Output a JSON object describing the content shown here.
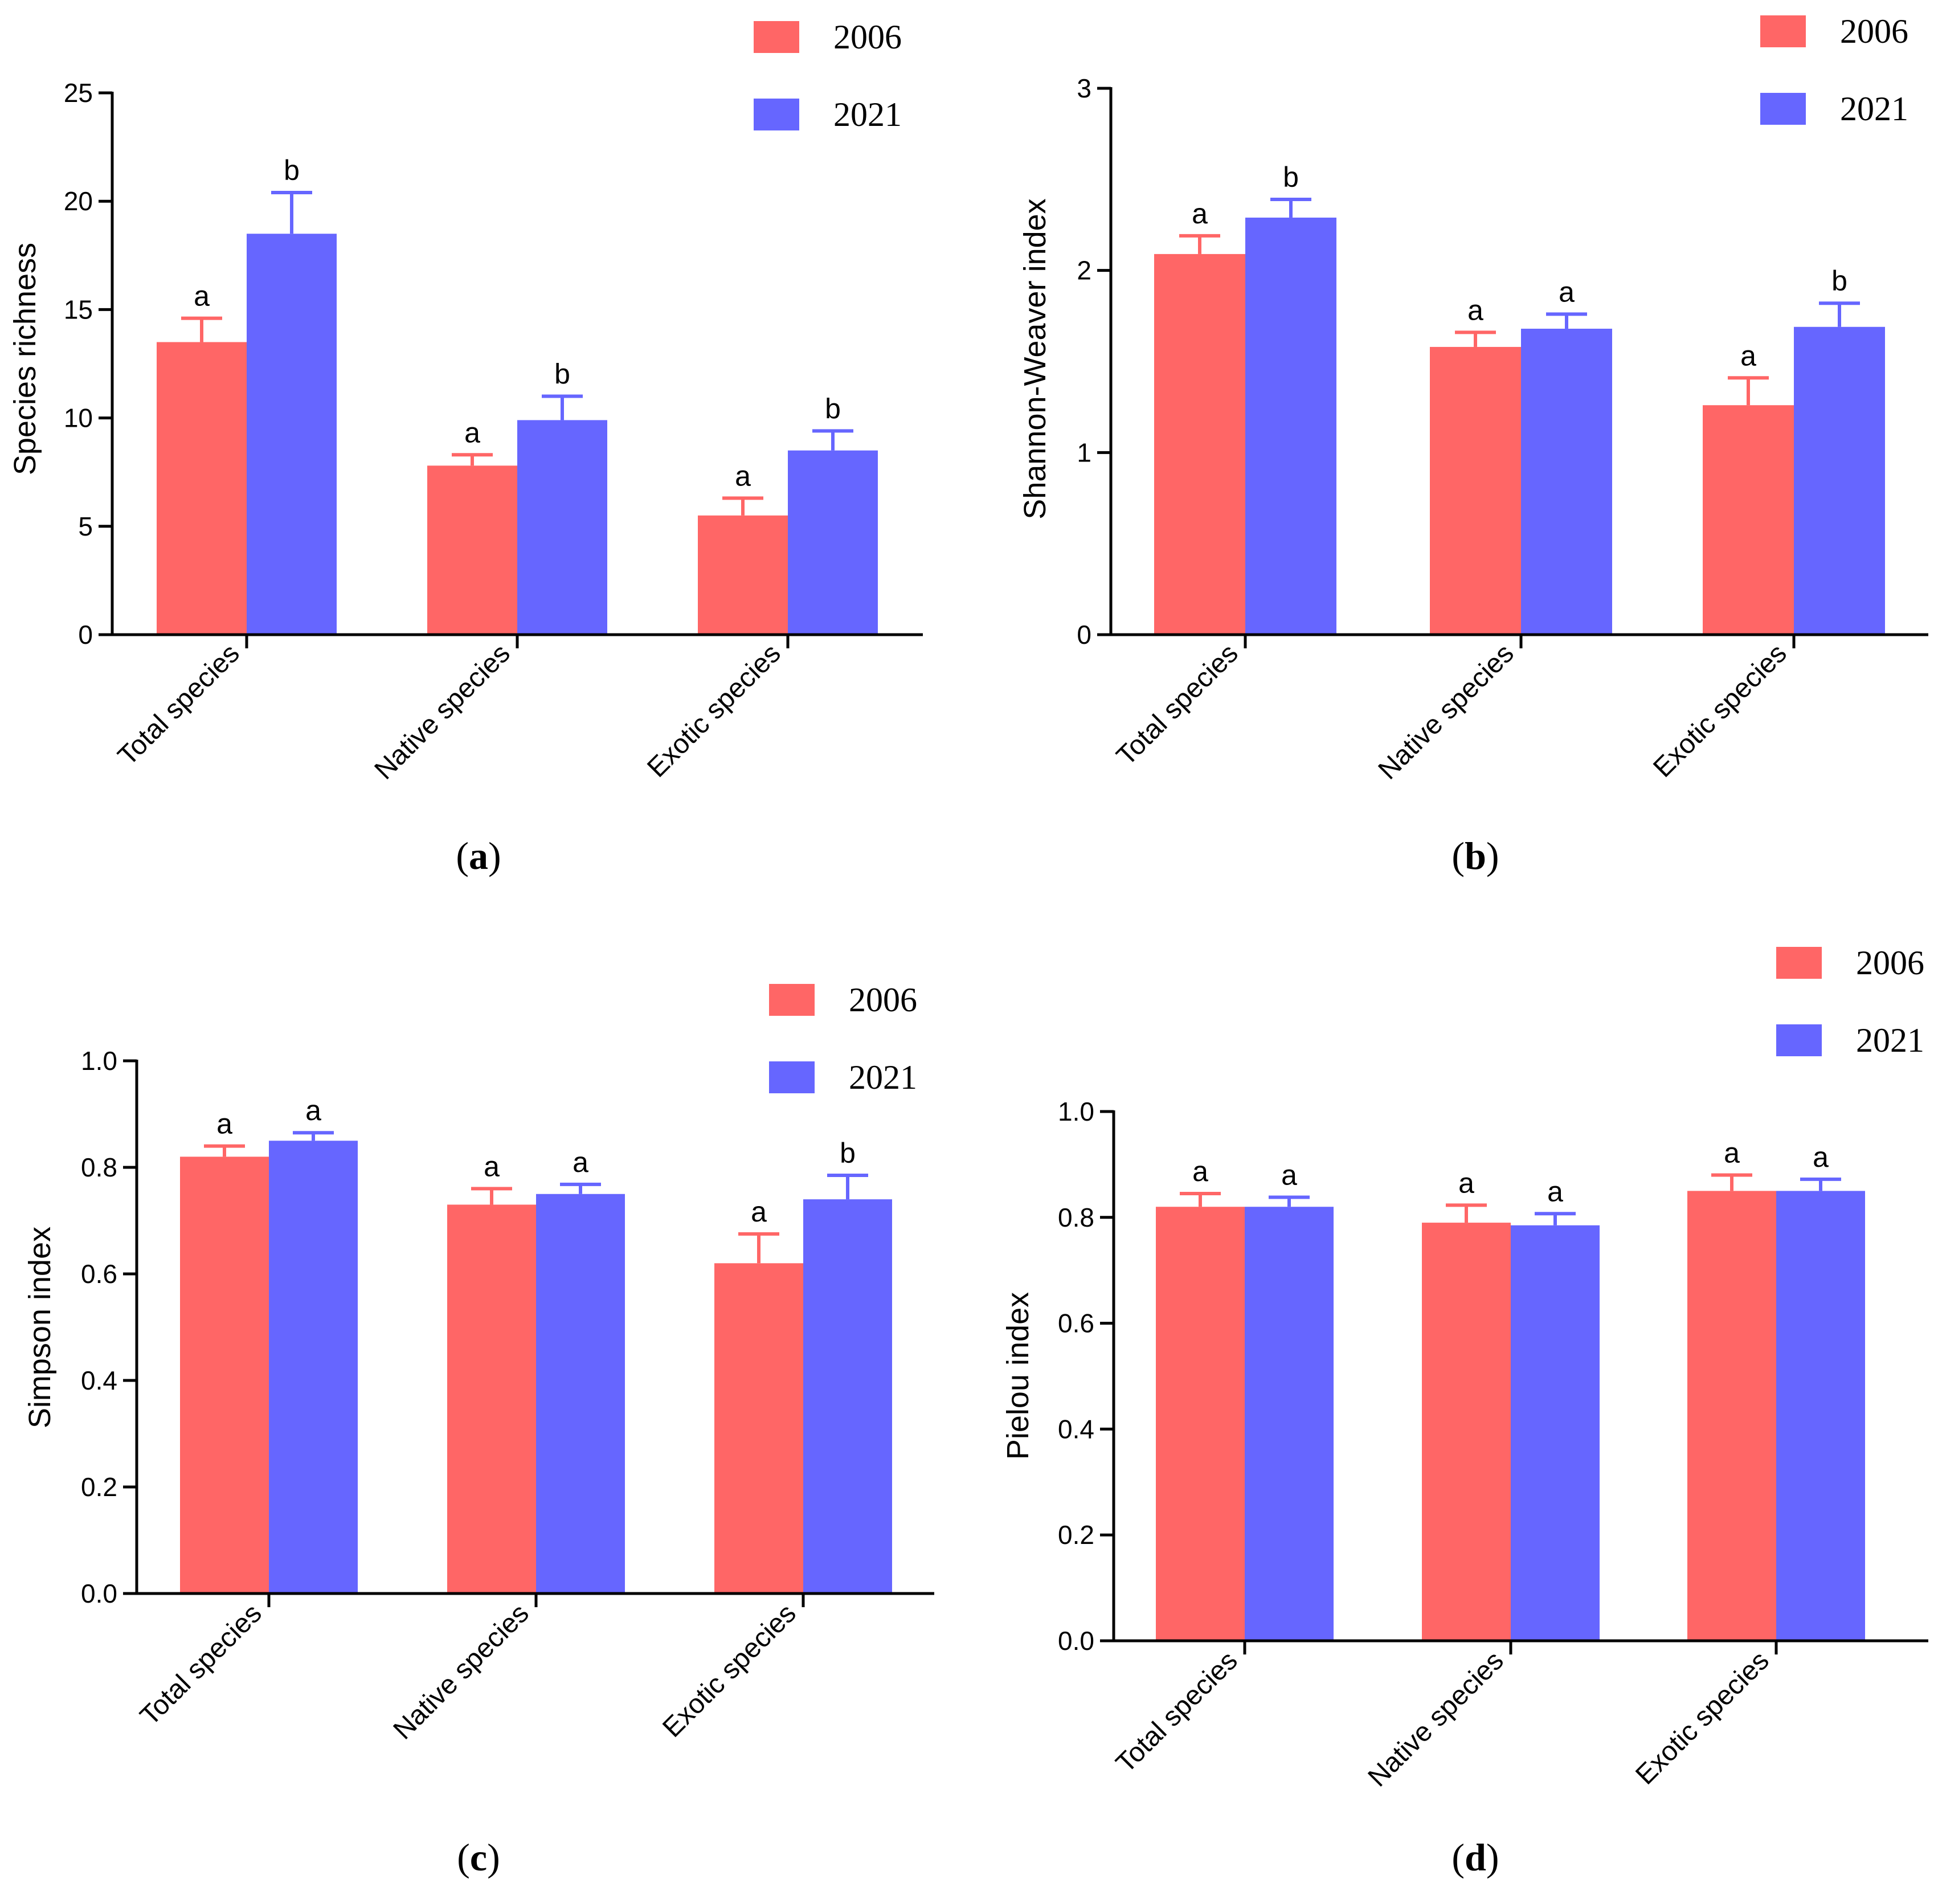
{
  "colors": {
    "series_2006": "#FF6666",
    "series_2021": "#6666FF",
    "axis": "#000000",
    "pielou_ylabel": "#555555"
  },
  "chart_data": [
    {
      "type": "bar",
      "panel": "a",
      "ylabel": "Species richness",
      "ylim": [
        0,
        25
      ],
      "yticks": [
        "0",
        "5",
        "10",
        "15",
        "20",
        "25"
      ],
      "categories": [
        "Total species",
        "Native species",
        "Exotic species"
      ],
      "series": [
        {
          "name": "2006",
          "values": [
            13.5,
            7.8,
            5.5
          ],
          "errors": [
            1.1,
            0.5,
            0.8
          ],
          "letters": [
            "a",
            "a",
            "a"
          ]
        },
        {
          "name": "2021",
          "values": [
            18.5,
            9.9,
            8.5
          ],
          "errors": [
            1.9,
            1.1,
            0.9
          ],
          "letters": [
            "b",
            "b",
            "b"
          ]
        }
      ]
    },
    {
      "type": "bar",
      "panel": "b",
      "ylabel": "Shannon-Weaver index",
      "ylim": [
        0,
        3
      ],
      "yticks": [
        "0",
        "1",
        "2",
        "3"
      ],
      "categories": [
        "Total species",
        "Native species",
        "Exotic species"
      ],
      "series": [
        {
          "name": "2006",
          "values": [
            2.09,
            1.58,
            1.26
          ],
          "errors": [
            0.1,
            0.08,
            0.15
          ],
          "letters": [
            "a",
            "a",
            "a"
          ]
        },
        {
          "name": "2021",
          "values": [
            2.29,
            1.68,
            1.69
          ],
          "errors": [
            0.1,
            0.08,
            0.13
          ],
          "letters": [
            "b",
            "a",
            "b"
          ]
        }
      ]
    },
    {
      "type": "bar",
      "panel": "c",
      "ylabel": "Simpson index",
      "ylim": [
        0,
        1.0
      ],
      "yticks": [
        "0.0",
        "0.2",
        "0.4",
        "0.6",
        "0.8",
        "1.0"
      ],
      "categories": [
        "Total species",
        "Native species",
        "Exotic species"
      ],
      "series": [
        {
          "name": "2006",
          "values": [
            0.82,
            0.73,
            0.62
          ],
          "errors": [
            0.02,
            0.03,
            0.055
          ],
          "letters": [
            "a",
            "a",
            "a"
          ]
        },
        {
          "name": "2021",
          "values": [
            0.85,
            0.75,
            0.74
          ],
          "errors": [
            0.015,
            0.018,
            0.045
          ],
          "letters": [
            "a",
            "a",
            "b"
          ]
        }
      ]
    },
    {
      "type": "bar",
      "panel": "d",
      "ylabel": "Pielou index",
      "ylim": [
        0,
        1.0
      ],
      "yticks": [
        "0.0",
        "0.2",
        "0.4",
        "0.6",
        "0.8",
        "1.0"
      ],
      "categories": [
        "Total species",
        "Native species",
        "Exotic species"
      ],
      "series": [
        {
          "name": "2006",
          "values": [
            0.82,
            0.79,
            0.85
          ],
          "errors": [
            0.025,
            0.033,
            0.03
          ],
          "letters": [
            "a",
            "a",
            "a"
          ]
        },
        {
          "name": "2021",
          "values": [
            0.82,
            0.785,
            0.85
          ],
          "errors": [
            0.018,
            0.022,
            0.022
          ],
          "letters": [
            "a",
            "a",
            "a"
          ]
        }
      ]
    }
  ]
}
